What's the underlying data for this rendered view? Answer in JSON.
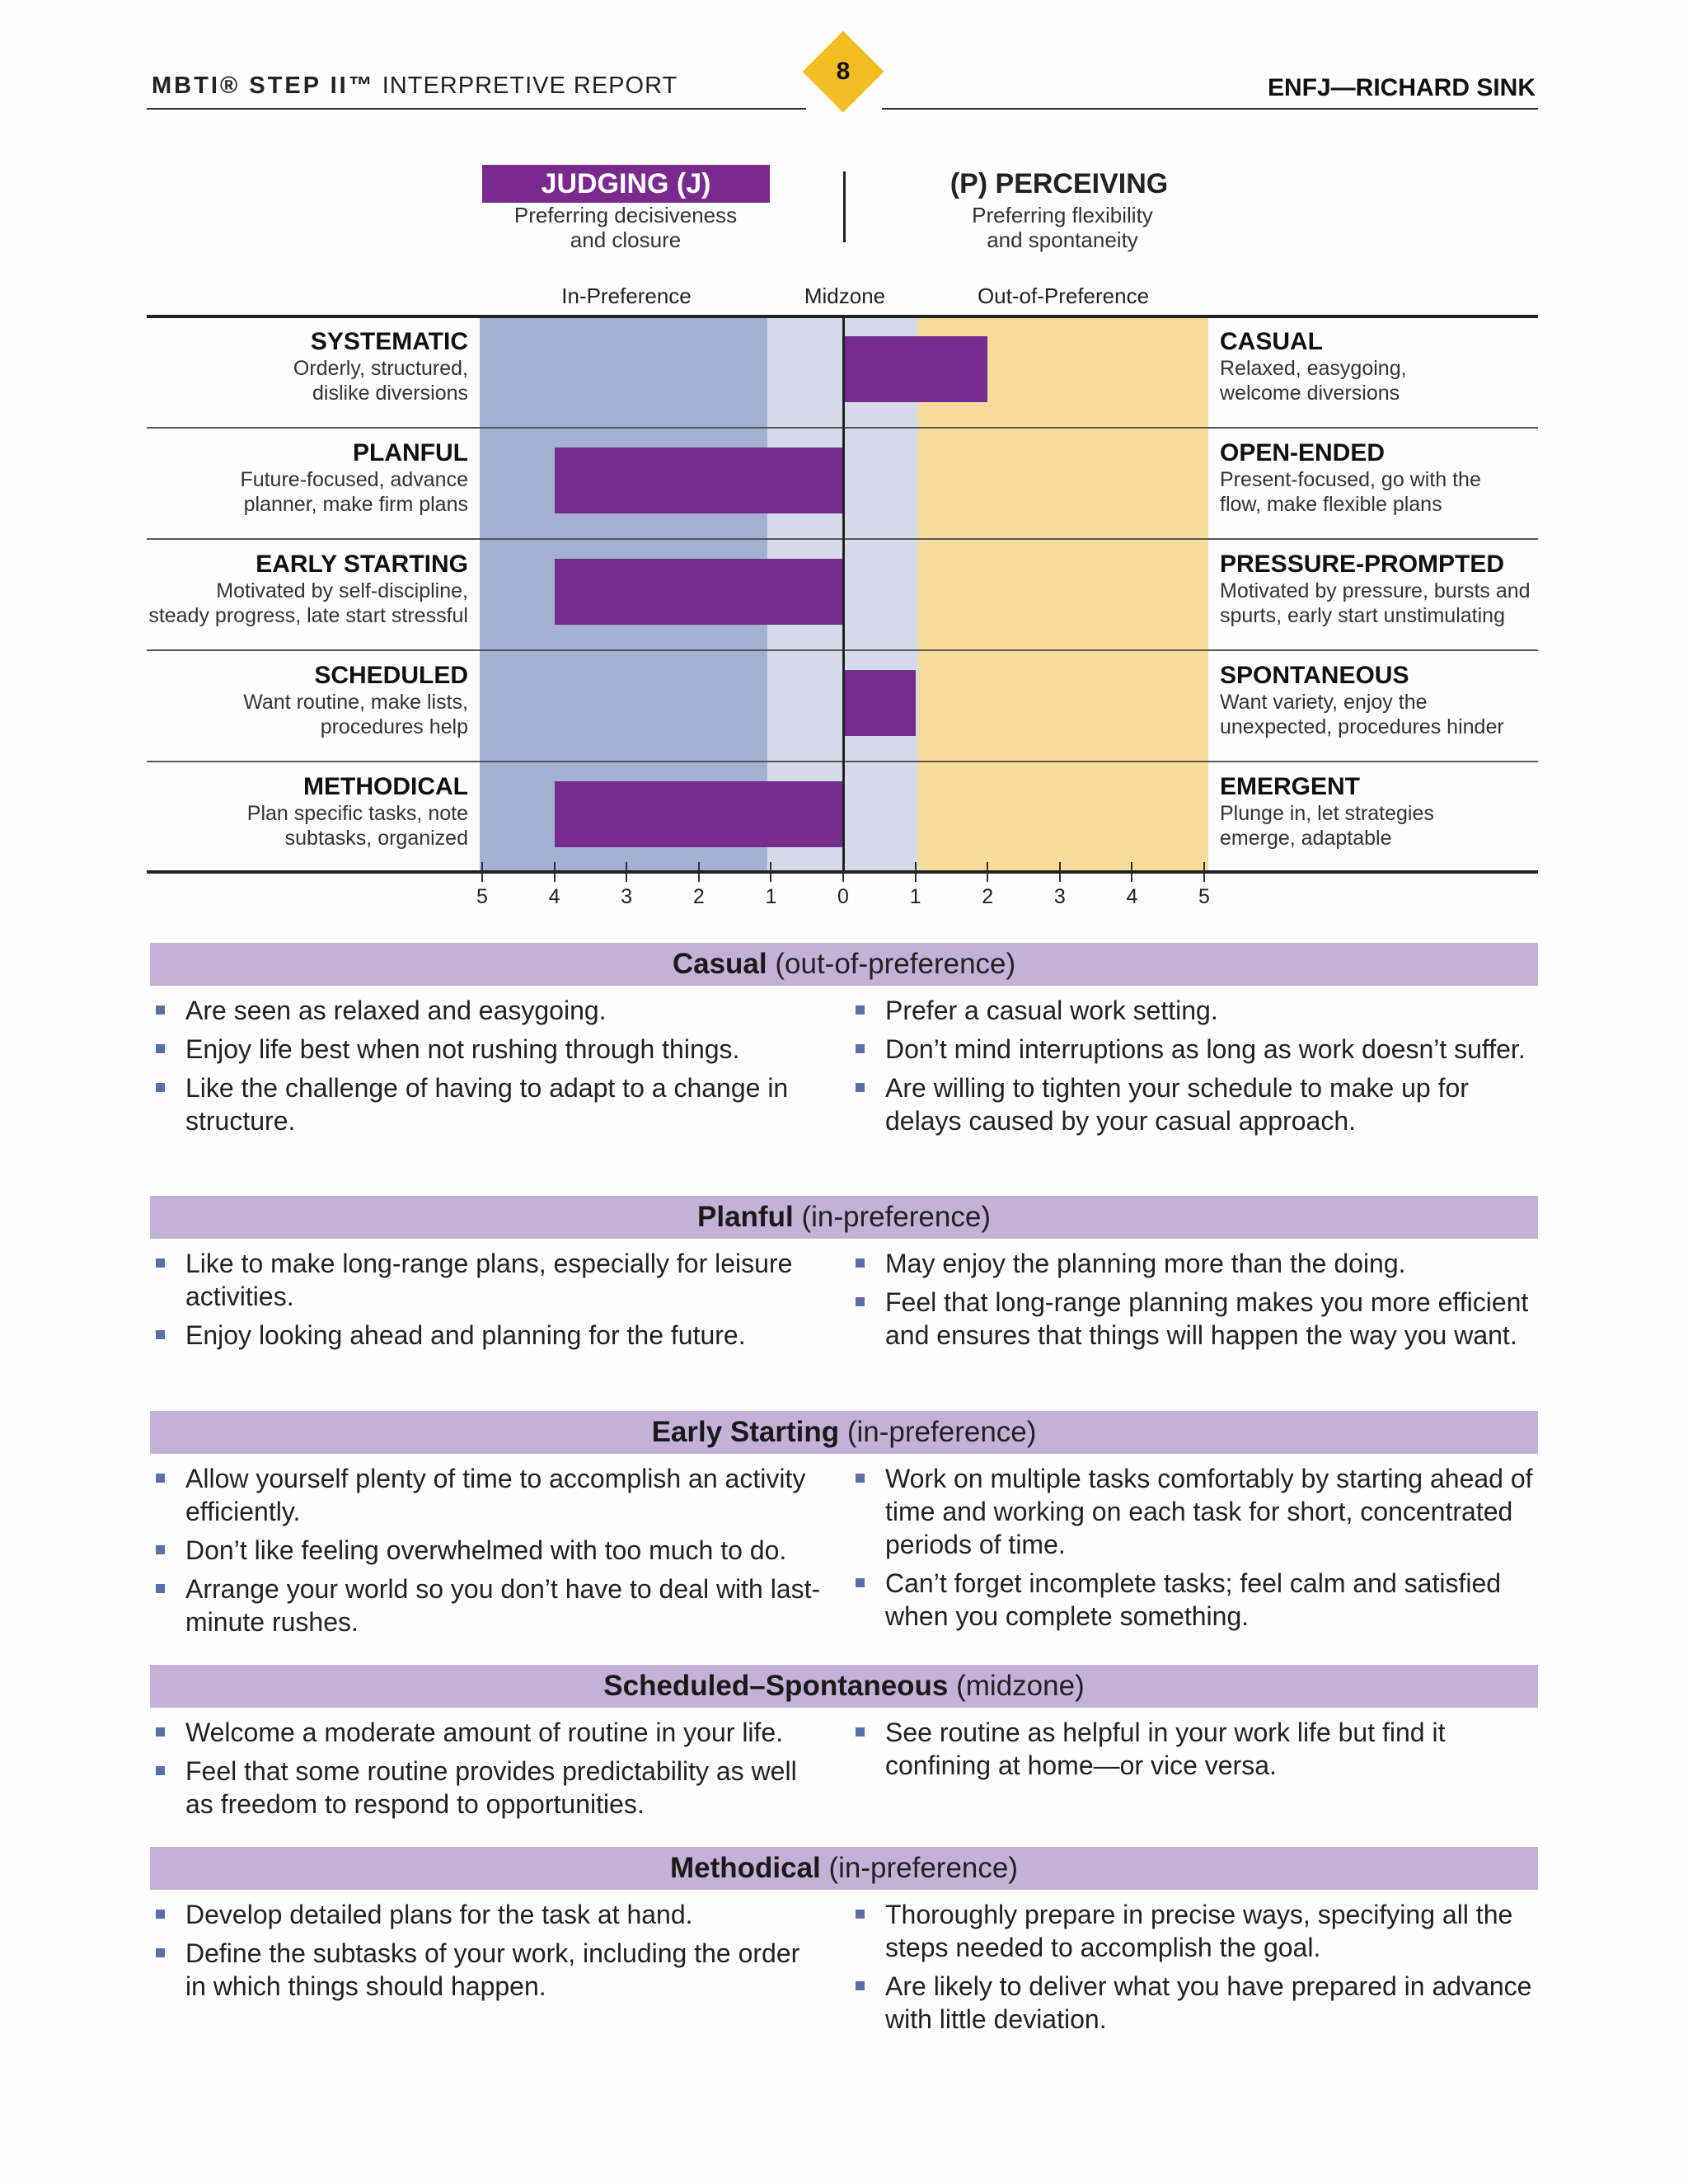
{
  "header": {
    "brand": "MBTI® STEP II™",
    "report_type": "INTERPRETIVE REPORT",
    "page_number": "8",
    "person": "ENFJ—RICHARD SINK"
  },
  "poles": {
    "left_title": "JUDGING (J)",
    "left_desc_1": "Preferring decisiveness",
    "left_desc_2": "and closure",
    "right_title": "(P) PERCEIVING",
    "right_desc_1": "Preferring flexibility",
    "right_desc_2": "and spontaneity"
  },
  "zones": {
    "in": "In-Preference",
    "mid": "Midzone",
    "out": "Out-of-Preference"
  },
  "colors": {
    "in_preference": "#a3b1d2",
    "midzone": "#d6dbea",
    "out_of_preference": "#f7dc9c",
    "bar": "#762b8e",
    "section_header": "#c5b0d8",
    "badge": "#f2bd23"
  },
  "chart_data": {
    "type": "bar",
    "orientation": "horizontal",
    "x_ticks": [
      "5",
      "4",
      "3",
      "2",
      "1",
      "0",
      "1",
      "2",
      "3",
      "4",
      "5"
    ],
    "xlim": [
      -5,
      5
    ],
    "categories": [
      "SYSTEMATIC–CASUAL",
      "PLANFUL–OPEN-ENDED",
      "EARLY STARTING–PRESSURE-PROMPTED",
      "SCHEDULED–SPONTANEOUS",
      "METHODICAL–EMERGENT"
    ],
    "values": [
      2,
      -4,
      -4,
      1,
      -4
    ],
    "facets": [
      {
        "left_name": "SYSTEMATIC",
        "left_desc_1": "Orderly, structured,",
        "left_desc_2": "dislike diversions",
        "right_name": "CASUAL",
        "right_desc_1": "Relaxed, easygoing,",
        "right_desc_2": "welcome diversions",
        "score": 2
      },
      {
        "left_name": "PLANFUL",
        "left_desc_1": "Future-focused, advance",
        "left_desc_2": "planner, make firm plans",
        "right_name": "OPEN-ENDED",
        "right_desc_1": "Present-focused, go with the",
        "right_desc_2": "flow, make flexible plans",
        "score": -4
      },
      {
        "left_name": "EARLY STARTING",
        "left_desc_1": "Motivated by self-discipline,",
        "left_desc_2": "steady progress, late start stressful",
        "right_name": "PRESSURE-PROMPTED",
        "right_desc_1": "Motivated by pressure, bursts and",
        "right_desc_2": "spurts, early start unstimulating",
        "score": -4
      },
      {
        "left_name": "SCHEDULED",
        "left_desc_1": "Want routine, make lists,",
        "left_desc_2": "procedures help",
        "right_name": "SPONTANEOUS",
        "right_desc_1": "Want variety, enjoy the",
        "right_desc_2": "unexpected, procedures hinder",
        "score": 1
      },
      {
        "left_name": "METHODICAL",
        "left_desc_1": "Plan specific tasks, note",
        "left_desc_2": "subtasks, organized",
        "right_name": "EMERGENT",
        "right_desc_1": "Plunge in, let strategies",
        "right_desc_2": "emerge, adaptable",
        "score": -4
      }
    ]
  },
  "sections": [
    {
      "title": "Casual",
      "qualifier": "(out-of-preference)",
      "left": [
        "Are seen as relaxed and easygoing.",
        "Enjoy life best when not rushing through things.",
        "Like the challenge of having to adapt to a change in structure."
      ],
      "right": [
        "Prefer a casual work setting.",
        "Don’t mind interruptions as long as work doesn’t suffer.",
        "Are willing to tighten your schedule to make up for delays caused by your casual approach."
      ]
    },
    {
      "title": "Planful",
      "qualifier": "(in-preference)",
      "left": [
        "Like to make long-range plans, especially for leisure activities.",
        "Enjoy looking ahead and planning for the future."
      ],
      "right": [
        "May enjoy the planning more than the doing.",
        "Feel that long-range planning makes you more efficient and ensures that things will happen the way you want."
      ]
    },
    {
      "title": "Early Starting",
      "qualifier": "(in-preference)",
      "left": [
        "Allow yourself plenty of time to accomplish an activity efficiently.",
        "Don’t like feeling overwhelmed with too much to do.",
        "Arrange your world so you don’t have to deal with last-minute rushes."
      ],
      "right": [
        "Work on multiple tasks comfortably by starting ahead of time and working on each task for short, concentrated periods of time.",
        "Can’t forget incomplete tasks; feel calm and satisfied when you complete something."
      ]
    },
    {
      "title": "Scheduled–Spontaneous",
      "qualifier": "(midzone)",
      "left": [
        "Welcome a moderate amount of routine in your life.",
        "Feel that some routine provides predictability as well as freedom to respond to opportunities."
      ],
      "right": [
        "See routine as helpful in your work life but find it confining at home—or vice versa."
      ]
    },
    {
      "title": "Methodical",
      "qualifier": "(in-preference)",
      "left": [
        "Develop detailed plans for the task at hand.",
        "Define the subtasks of your work, including the order in which things should happen."
      ],
      "right": [
        "Thoroughly prepare in precise ways, specifying all the steps needed to accomplish the goal.",
        "Are likely to deliver what you have prepared in advance with little deviation."
      ]
    }
  ]
}
